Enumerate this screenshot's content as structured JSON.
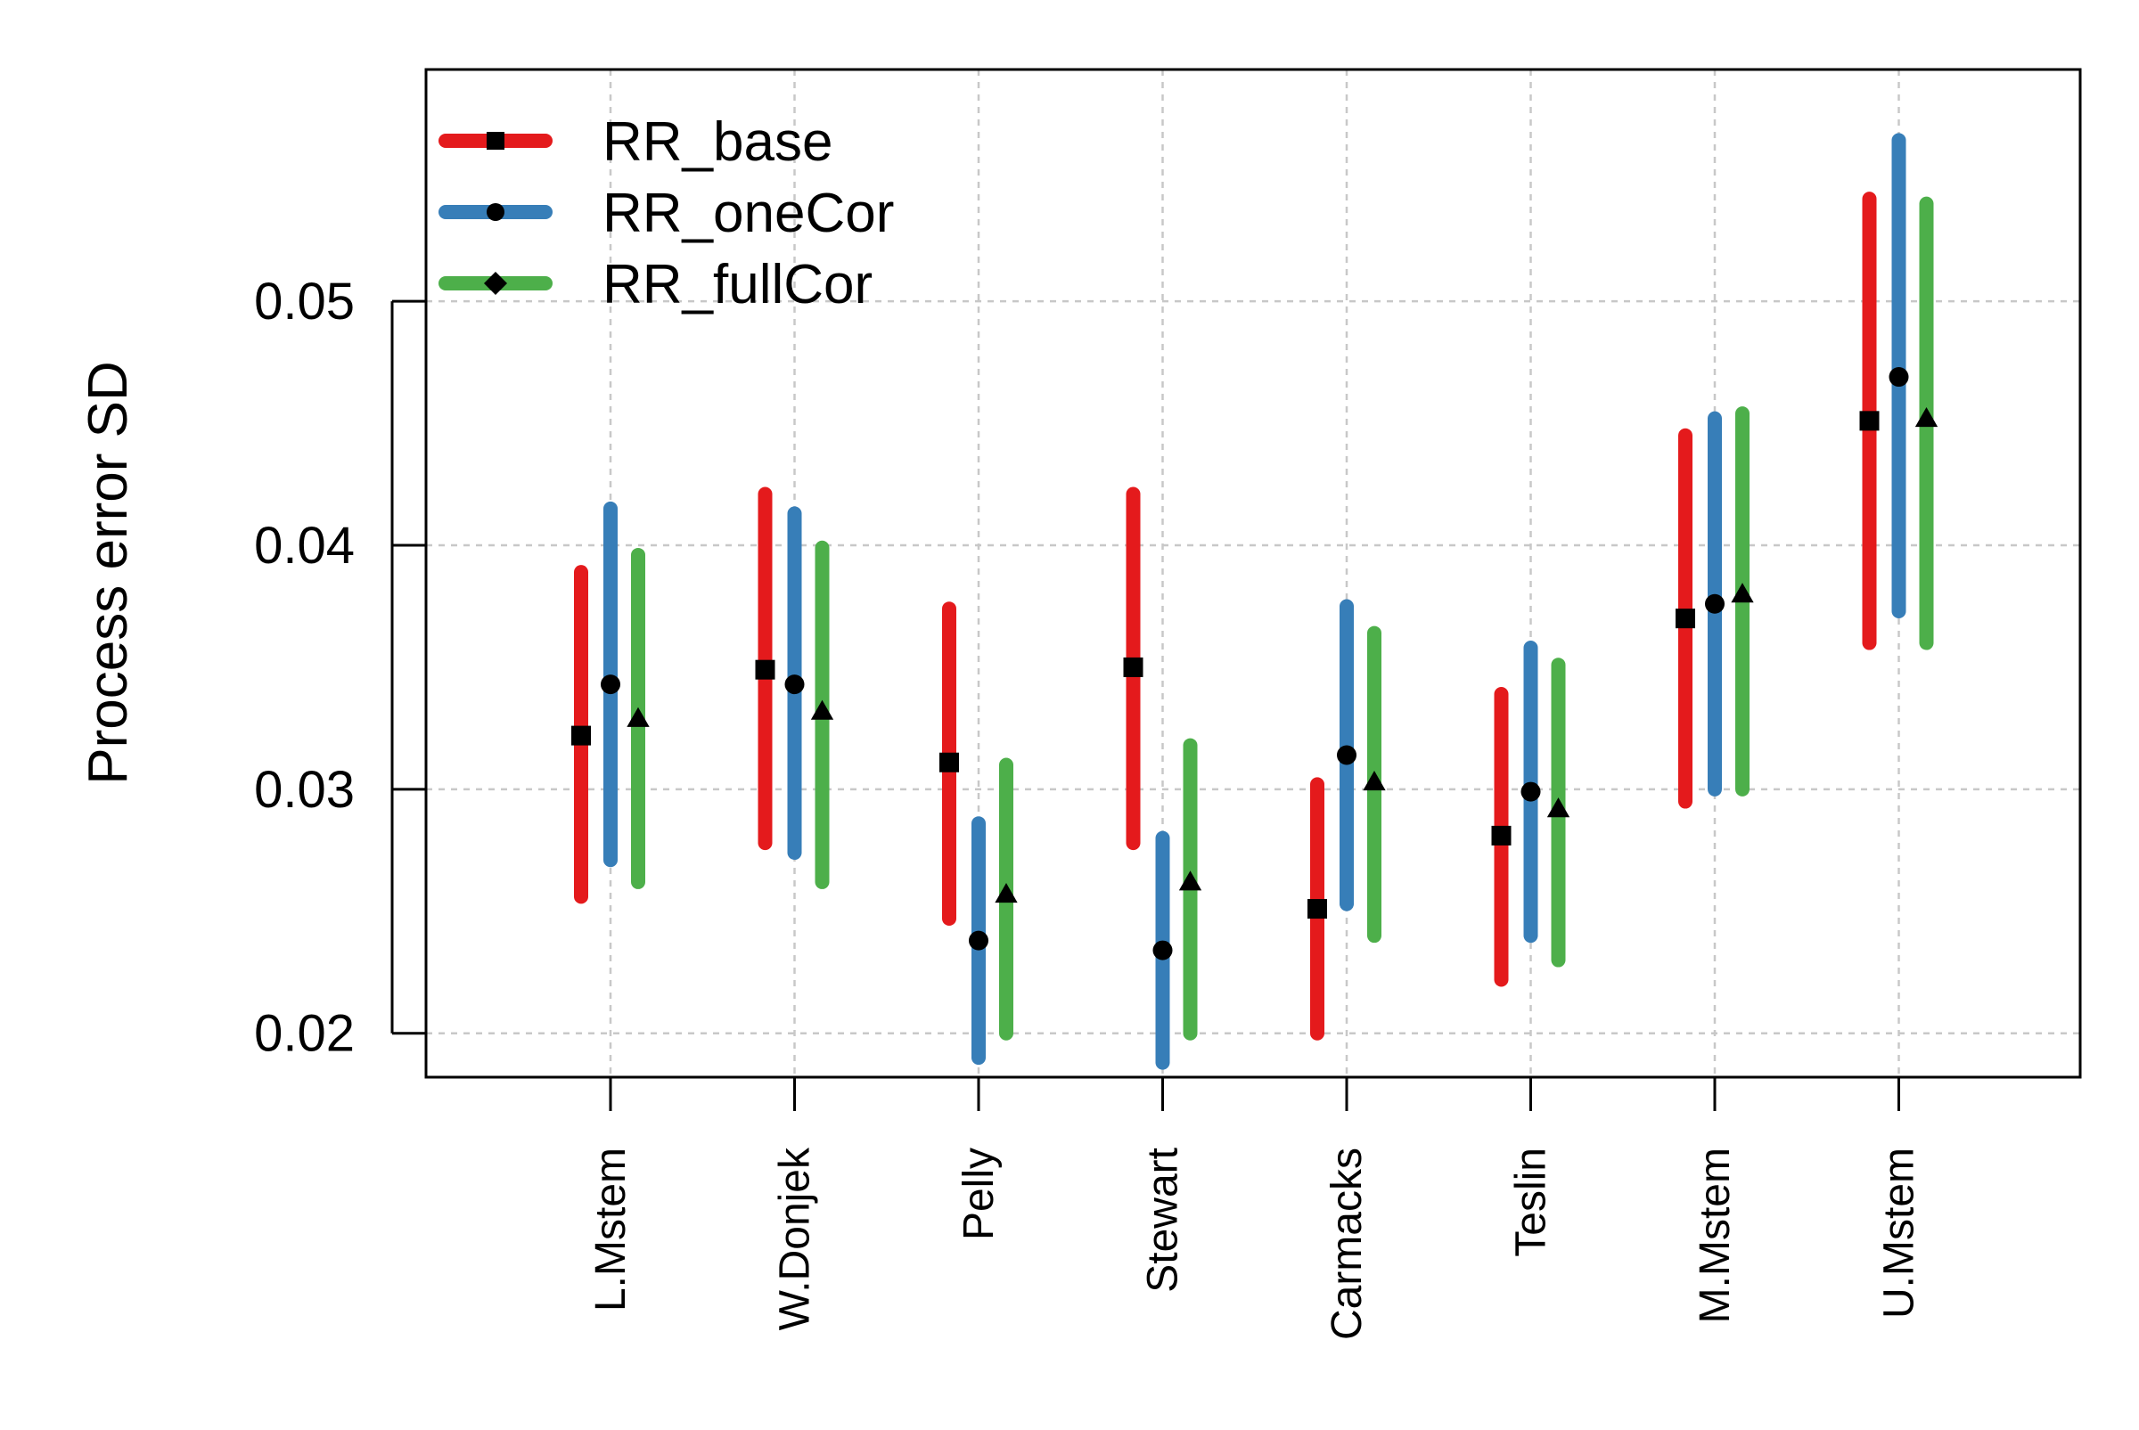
{
  "chart_data": {
    "type": "errorbar",
    "title": "",
    "xlabel": "",
    "ylabel": "Process error SD",
    "ylim": [
      0.0182,
      0.0595
    ],
    "yticks": [
      "0.02",
      "0.03",
      "0.04",
      "0.05"
    ],
    "grid": true,
    "legend_position": "top-left",
    "categories": [
      "L.Mstem",
      "W.Donjek",
      "Pelly",
      "Stewart",
      "Carmacks",
      "Teslin",
      "M.Mstem",
      "U.Mstem"
    ],
    "series": [
      {
        "name": "RR_base",
        "color": "#e41a1c",
        "marker": "square",
        "values": [
          0.0322,
          0.0349,
          0.0311,
          0.035,
          0.0251,
          0.0281,
          0.037,
          0.0451
        ],
        "lower": [
          0.0256,
          0.0278,
          0.0247,
          0.0278,
          0.02,
          0.0222,
          0.0295,
          0.036
        ],
        "upper": [
          0.0389,
          0.0421,
          0.0374,
          0.0421,
          0.0302,
          0.0339,
          0.0445,
          0.0542
        ]
      },
      {
        "name": "RR_oneCor",
        "color": "#377eb8",
        "marker": "circle",
        "values": [
          0.0343,
          0.0343,
          0.0238,
          0.0234,
          0.0314,
          0.0299,
          0.0376,
          0.0469
        ],
        "lower": [
          0.0271,
          0.0274,
          0.019,
          0.0188,
          0.0253,
          0.024,
          0.03,
          0.0373
        ],
        "upper": [
          0.0415,
          0.0413,
          0.0286,
          0.028,
          0.0375,
          0.0358,
          0.0452,
          0.0566
        ]
      },
      {
        "name": "RR_fullCor",
        "color": "#4daf4a",
        "marker": "triangle",
        "legend_marker": "diamond",
        "values": [
          0.0329,
          0.0332,
          0.0257,
          0.0262,
          0.0303,
          0.0292,
          0.038,
          0.0452
        ],
        "lower": [
          0.0262,
          0.0262,
          0.02,
          0.02,
          0.024,
          0.023,
          0.03,
          0.036
        ],
        "upper": [
          0.0396,
          0.0399,
          0.031,
          0.0318,
          0.0364,
          0.0351,
          0.0454,
          0.054
        ]
      }
    ]
  }
}
